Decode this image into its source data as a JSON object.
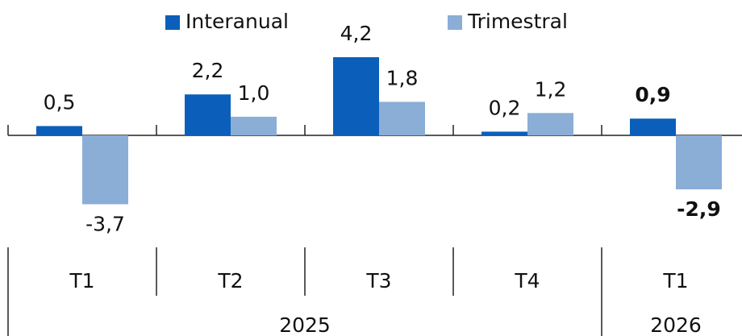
{
  "chart_data": {
    "type": "bar",
    "groups": [
      {
        "name": "2025",
        "categories": [
          "T1",
          "T2",
          "T3",
          "T4"
        ]
      },
      {
        "name": "2026",
        "categories": [
          "T1"
        ]
      }
    ],
    "series": [
      {
        "name": "Interanual",
        "color": "#0b5fba",
        "values": [
          0.5,
          2.2,
          4.2,
          0.2,
          0.9
        ],
        "value_labels": [
          "0,5",
          "2,2",
          "4,2",
          "0,2",
          "0,9"
        ]
      },
      {
        "name": "Trimestral",
        "color": "#8aaed6",
        "values": [
          -3.7,
          1.0,
          1.8,
          1.2,
          -2.9
        ],
        "value_labels": [
          "-3,7",
          "1,0",
          "1,8",
          "1,2",
          "-2,9"
        ]
      }
    ],
    "legend": "top"
  }
}
